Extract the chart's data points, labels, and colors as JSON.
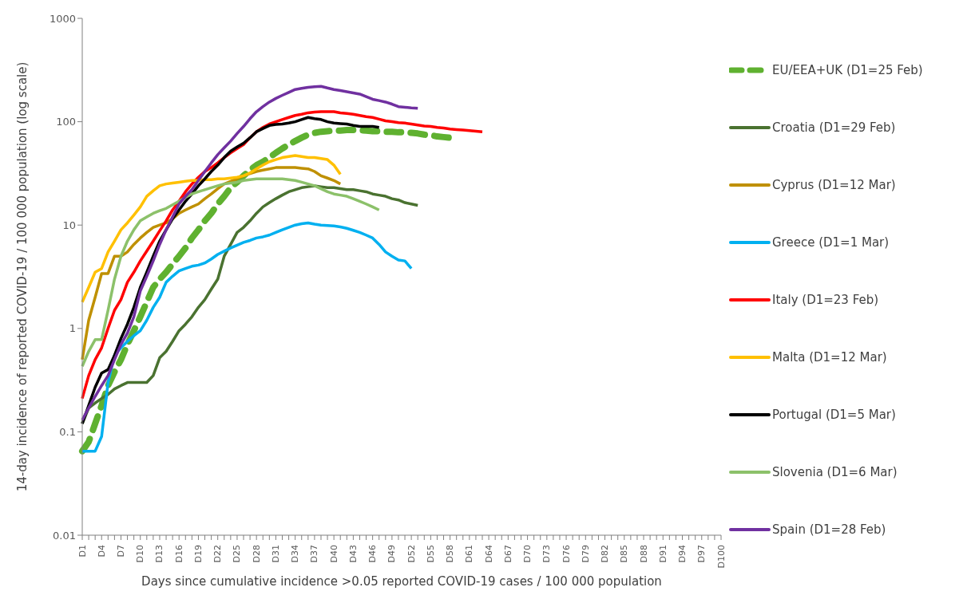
{
  "chart_data": {
    "type": "line",
    "xlabel": "Days since cumulative incidence >0.05 reported COVID-19 cases / 100 000 population",
    "ylabel": "14-day incidence of reported COVID-19 / 100 000 population (log scale)",
    "log": "y",
    "legend": "right",
    "line_style": "solid",
    "categories": [
      "D1",
      null,
      null,
      "D4",
      null,
      null,
      "D7",
      null,
      null,
      "D10",
      null,
      null,
      "D13",
      null,
      null,
      "D16",
      null,
      null,
      "D19",
      null,
      null,
      "D22",
      null,
      null,
      "D25",
      null,
      null,
      "D28",
      null,
      null,
      "D31",
      null,
      null,
      "D34",
      null,
      null,
      "D37",
      null,
      null,
      "D40",
      null,
      null,
      "D43",
      null,
      null,
      "D46",
      null,
      null,
      "D49",
      null,
      null,
      "D52",
      null,
      null,
      "D55",
      null,
      null,
      "D58",
      null,
      null,
      "D61",
      null,
      null,
      "D64",
      null,
      null,
      "D67",
      null,
      null,
      "D70",
      null,
      null,
      "D73",
      null,
      null,
      "D76",
      null,
      null,
      "D79",
      null,
      null,
      "D82",
      null,
      null,
      "D85",
      null,
      null,
      "D88",
      null,
      null,
      "D91",
      null,
      null,
      "D94",
      null,
      null,
      "D97",
      null,
      null,
      "D100"
    ],
    "ylim": [
      0.01,
      1000
    ],
    "yticks": [
      0.01,
      0.1,
      1,
      10,
      100,
      1000
    ],
    "series": [
      {
        "name": "EU/EEA+UK  (D1=25 Feb)",
        "color": "#5fb130",
        "line_style": "dashed",
        "values": [
          0.065,
          0.08,
          0.12,
          0.18,
          0.28,
          0.38,
          0.5,
          0.7,
          0.95,
          1.3,
          1.8,
          2.5,
          3,
          3.5,
          4.2,
          5,
          6,
          7.5,
          9,
          11,
          13,
          16,
          19,
          23,
          26,
          30,
          34,
          38,
          41,
          45,
          50,
          55,
          60,
          65,
          70,
          75,
          78,
          80,
          81,
          82,
          82,
          83,
          83,
          83,
          82,
          81,
          81,
          80,
          80,
          79,
          79,
          78,
          77,
          75,
          74,
          72,
          71,
          70,
          68,
          null,
          null,
          null,
          null,
          null,
          null,
          null,
          null,
          null,
          null,
          null,
          null,
          null,
          null,
          null,
          null,
          null,
          null,
          null,
          null,
          null,
          null,
          null,
          null,
          null,
          null,
          null,
          null,
          null,
          null,
          null,
          null,
          null,
          null,
          null,
          null,
          null,
          null,
          null,
          null,
          null
        ]
      },
      {
        "name": "Croatia  (D1=29 Feb)",
        "color": "#4a7230",
        "values": [
          0.12,
          0.17,
          0.19,
          0.21,
          0.23,
          0.26,
          0.28,
          0.3,
          0.3,
          0.3,
          0.3,
          0.35,
          0.52,
          0.6,
          0.75,
          0.95,
          1.1,
          1.3,
          1.6,
          1.9,
          2.4,
          3,
          5,
          6.5,
          8.5,
          9.5,
          11,
          13,
          15,
          16.5,
          18,
          19.5,
          21,
          22,
          23,
          23.5,
          24,
          23.5,
          23,
          23,
          22.5,
          22,
          22,
          21.5,
          21,
          20,
          19.5,
          19,
          18,
          17.5,
          16.5,
          16,
          15.5,
          null,
          null,
          null,
          null,
          null,
          null,
          null,
          null,
          null,
          null,
          null,
          null,
          null,
          null,
          null,
          null,
          null,
          null,
          null,
          null,
          null,
          null,
          null,
          null,
          null,
          null,
          null,
          null,
          null,
          null,
          null,
          null,
          null,
          null,
          null,
          null,
          null,
          null,
          null,
          null,
          null,
          null,
          null,
          null,
          null,
          null,
          null
        ]
      },
      {
        "name": "Cyprus  (D1=12 Mar)",
        "color": "#bf9000",
        "values": [
          0.5,
          1.2,
          2,
          3.4,
          3.4,
          5,
          5,
          5.5,
          6.5,
          7.5,
          8.5,
          9.5,
          10,
          10.5,
          11.5,
          13,
          14,
          15,
          16,
          18,
          20,
          22.5,
          25,
          26.5,
          28,
          30,
          31.5,
          33,
          34,
          35,
          36,
          36,
          36,
          36,
          35.5,
          35,
          33,
          30,
          28.5,
          27,
          25,
          null,
          null,
          null,
          null,
          null,
          null,
          null,
          null,
          null,
          null,
          null,
          null,
          null,
          null,
          null,
          null,
          null,
          null,
          null,
          null,
          null,
          null,
          null,
          null,
          null,
          null,
          null,
          null,
          null,
          null,
          null,
          null,
          null,
          null,
          null,
          null,
          null,
          null,
          null,
          null,
          null,
          null,
          null,
          null,
          null,
          null,
          null,
          null,
          null,
          null,
          null,
          null,
          null,
          null,
          null,
          null,
          null,
          null,
          null
        ]
      },
      {
        "name": "Greece  (D1=1 Mar)",
        "color": "#00b0f0",
        "values": [
          0.065,
          0.065,
          0.065,
          0.09,
          0.3,
          0.55,
          0.65,
          0.75,
          0.85,
          0.95,
          1.2,
          1.6,
          2,
          2.8,
          3.2,
          3.6,
          3.8,
          4,
          4.1,
          4.3,
          4.7,
          5.2,
          5.6,
          6,
          6.4,
          6.8,
          7.1,
          7.5,
          7.7,
          8,
          8.5,
          9,
          9.5,
          10,
          10.3,
          10.5,
          10.2,
          10,
          9.9,
          9.8,
          9.6,
          9.3,
          8.9,
          8.5,
          8,
          7.5,
          6.5,
          5.5,
          5,
          4.6,
          4.5,
          3.8,
          null,
          null,
          null,
          null,
          null,
          null,
          null,
          null,
          null,
          null,
          null,
          null,
          null,
          null,
          null,
          null,
          null,
          null,
          null,
          null,
          null,
          null,
          null,
          null,
          null,
          null,
          null,
          null,
          null,
          null,
          null,
          null,
          null,
          null,
          null,
          null,
          null,
          null,
          null,
          null,
          null,
          null,
          null,
          null,
          null,
          null,
          null,
          null
        ]
      },
      {
        "name": "Italy  (D1=23 Feb)",
        "color": "#ff0000",
        "values": [
          0.21,
          0.35,
          0.5,
          0.65,
          1,
          1.5,
          1.9,
          2.8,
          3.5,
          4.5,
          5.6,
          7,
          8.8,
          11,
          14,
          17,
          21,
          25,
          29,
          33,
          36,
          40,
          45,
          50,
          55,
          60,
          70,
          80,
          88,
          95,
          100,
          105,
          110,
          115,
          118,
          122,
          124,
          125,
          125,
          125,
          122,
          120,
          118,
          115,
          112,
          110,
          106,
          102,
          100,
          98,
          97,
          95,
          93,
          91,
          90,
          88,
          87,
          85,
          84,
          83,
          82,
          81,
          80,
          null,
          null,
          null,
          null,
          null,
          null,
          null,
          null,
          null,
          null,
          null,
          null,
          null,
          null,
          null,
          null,
          null,
          null,
          null,
          null,
          null,
          null,
          null,
          null,
          null,
          null,
          null,
          null,
          null,
          null,
          null,
          null,
          null,
          null,
          null,
          null,
          null
        ]
      },
      {
        "name": "Malta  (D1=12 Mar)",
        "color": "#ffc000",
        "values": [
          1.8,
          2.5,
          3.5,
          3.8,
          5.5,
          7,
          9,
          10.5,
          12.5,
          15,
          19,
          21.5,
          24,
          25,
          25.5,
          26,
          26.5,
          27,
          27,
          27.5,
          27.5,
          28,
          28,
          28.5,
          29,
          30,
          32,
          35,
          38,
          41,
          43,
          45,
          46,
          47,
          46,
          45,
          45,
          44,
          43,
          38,
          31,
          null,
          null,
          null,
          null,
          null,
          null,
          null,
          null,
          null,
          null,
          null,
          null,
          null,
          null,
          null,
          null,
          null,
          null,
          null,
          null,
          null,
          null,
          null,
          null,
          null,
          null,
          null,
          null,
          null,
          null,
          null,
          null,
          null,
          null,
          null,
          null,
          null,
          null,
          null,
          null,
          null,
          null,
          null,
          null,
          null,
          null,
          null,
          null,
          null,
          null,
          null,
          null,
          null,
          null,
          null,
          null,
          null,
          null,
          null
        ]
      },
      {
        "name": "Portugal  (D1=5 Mar)",
        "color": "#000000",
        "values": [
          0.12,
          0.18,
          0.27,
          0.37,
          0.4,
          0.55,
          0.8,
          1.1,
          1.6,
          2.5,
          3.5,
          5,
          7,
          9,
          11.5,
          14,
          17,
          20,
          24,
          28,
          33,
          38,
          45,
          52,
          57,
          62,
          70,
          80,
          86,
          92,
          94,
          95,
          97,
          100,
          105,
          110,
          107,
          105,
          100,
          97,
          96,
          95,
          92,
          90,
          90,
          90,
          88,
          null,
          null,
          null,
          null,
          null,
          null,
          null,
          null,
          null,
          null,
          null,
          null,
          null,
          null,
          null,
          null,
          null,
          null,
          null,
          null,
          null,
          null,
          null,
          null,
          null,
          null,
          null,
          null,
          null,
          null,
          null,
          null,
          null,
          null,
          null,
          null,
          null,
          null,
          null,
          null,
          null,
          null,
          null,
          null,
          null,
          null,
          null,
          null,
          null,
          null,
          null,
          null,
          null
        ]
      },
      {
        "name": "Slovenia  (D1=6 Mar)",
        "color": "#8cc16a",
        "values": [
          0.43,
          0.6,
          0.78,
          0.78,
          1.5,
          3,
          5,
          7,
          9,
          11,
          12,
          13,
          13.8,
          14.5,
          15.7,
          17,
          18.5,
          20,
          21,
          22,
          23,
          24,
          25,
          25.5,
          26,
          27,
          27.5,
          28,
          28,
          28,
          28,
          28,
          27.5,
          27,
          26,
          25,
          24,
          22.5,
          21,
          20,
          19.5,
          19,
          18,
          17,
          16,
          15,
          14,
          null,
          null,
          null,
          null,
          null,
          null,
          null,
          null,
          null,
          null,
          null,
          null,
          null,
          null,
          null,
          null,
          null,
          null,
          null,
          null,
          null,
          null,
          null,
          null,
          null,
          null,
          null,
          null,
          null,
          null,
          null,
          null,
          null,
          null,
          null,
          null,
          null,
          null,
          null,
          null,
          null,
          null,
          null,
          null,
          null,
          null,
          null,
          null,
          null,
          null,
          null,
          null,
          null
        ]
      },
      {
        "name": "Spain  (D1=28 Feb)",
        "color": "#7030a0",
        "values": [
          0.13,
          0.17,
          0.22,
          0.28,
          0.35,
          0.5,
          0.7,
          0.9,
          1.3,
          2.3,
          3.2,
          4.5,
          6.5,
          9,
          12,
          16,
          19,
          22,
          27,
          33,
          40,
          48,
          56,
          65,
          77,
          90,
          107,
          125,
          140,
          155,
          168,
          180,
          192,
          205,
          210,
          215,
          218,
          220,
          212,
          205,
          200,
          195,
          190,
          185,
          175,
          165,
          160,
          155,
          148,
          140,
          138,
          136,
          135,
          null,
          null,
          null,
          null,
          null,
          null,
          null,
          null,
          null,
          null,
          null,
          null,
          null,
          null,
          null,
          null,
          null,
          null,
          null,
          null,
          null,
          null,
          null,
          null,
          null,
          null,
          null,
          null,
          null,
          null,
          null,
          null,
          null,
          null,
          null,
          null,
          null,
          null,
          null,
          null,
          null,
          null,
          null,
          null,
          null,
          null,
          null
        ]
      }
    ]
  }
}
